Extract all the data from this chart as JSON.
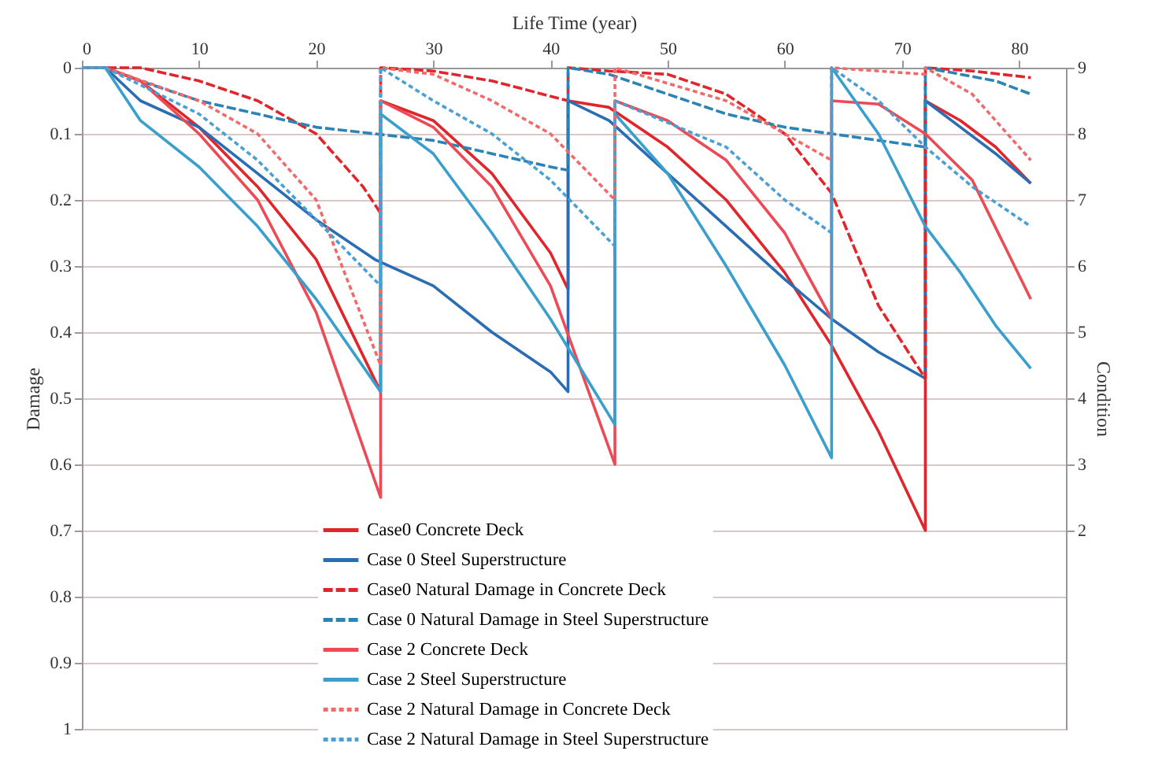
{
  "chart_data": {
    "type": "line",
    "xlabel": "Life Time (year)",
    "ylabel": "Damage",
    "y2label": "Condition",
    "xlim": [
      0,
      84
    ],
    "xticks": [
      0,
      10,
      20,
      30,
      40,
      50,
      60,
      70,
      80
    ],
    "ylim": [
      1,
      0
    ],
    "yticks": [
      0,
      0.1,
      0.2,
      0.3,
      0.4,
      0.5,
      0.6,
      0.7,
      0.8,
      0.9,
      1
    ],
    "y2lim": [
      -1,
      9
    ],
    "y2ticks": [
      2,
      3,
      4,
      5,
      6,
      7,
      8,
      9
    ],
    "grid": "y",
    "legend": "bottom",
    "series": [
      {
        "name": "Case0 Concrete Deck",
        "color": "#e0262b",
        "line_style": "solid",
        "x": [
          0,
          2,
          5,
          10,
          15,
          20,
          25.5,
          25.5,
          30,
          35,
          40,
          41.5,
          41.5,
          45,
          50,
          55,
          60,
          64,
          68,
          72,
          72,
          75,
          78,
          81
        ],
        "values": [
          0,
          0,
          0.02,
          0.09,
          0.18,
          0.29,
          0.49,
          0.05,
          0.08,
          0.16,
          0.28,
          0.335,
          0.05,
          0.06,
          0.12,
          0.2,
          0.31,
          0.42,
          0.55,
          0.7,
          0.05,
          0.08,
          0.12,
          0.175
        ]
      },
      {
        "name": "Case 0 Steel Superstructure",
        "color": "#2a6db2",
        "line_style": "solid",
        "x": [
          0,
          2,
          5,
          10,
          15,
          20,
          25,
          30,
          35,
          40,
          41.5,
          41.5,
          45,
          50,
          55,
          60,
          64,
          68,
          72,
          72,
          75,
          78,
          81
        ],
        "values": [
          0,
          0,
          0.05,
          0.09,
          0.16,
          0.23,
          0.29,
          0.33,
          0.4,
          0.46,
          0.49,
          0.05,
          0.08,
          0.16,
          0.24,
          0.32,
          0.38,
          0.43,
          0.47,
          0.05,
          0.09,
          0.13,
          0.175
        ]
      },
      {
        "name": "Case0 Natural Damage in Concrete Deck",
        "color": "#e0262b",
        "line_style": "dashed",
        "x": [
          0,
          5,
          10,
          15,
          20,
          24,
          25.5,
          25.5,
          30,
          35,
          41.5,
          41.5,
          45,
          50,
          55,
          60,
          64,
          68,
          72,
          72,
          76,
          81
        ],
        "values": [
          0,
          0,
          0.02,
          0.05,
          0.1,
          0.18,
          0.22,
          0,
          0.005,
          0.02,
          0.05,
          0,
          0.005,
          0.01,
          0.04,
          0.1,
          0.19,
          0.36,
          0.47,
          0,
          0.005,
          0.015
        ]
      },
      {
        "name": "Case 0 Natural Damage in Steel Superstructure",
        "color": "#2a84b5",
        "line_style": "dashed",
        "x": [
          0,
          2,
          5,
          10,
          15,
          20,
          25,
          30,
          35,
          40,
          41.5,
          41.5,
          45,
          50,
          55,
          60,
          64,
          68,
          72,
          72,
          75,
          78,
          81
        ],
        "values": [
          0,
          0,
          0.02,
          0.05,
          0.07,
          0.09,
          0.1,
          0.11,
          0.13,
          0.15,
          0.155,
          0,
          0.01,
          0.04,
          0.07,
          0.09,
          0.1,
          0.11,
          0.12,
          0,
          0.01,
          0.02,
          0.04
        ]
      },
      {
        "name": "Case 2 Concrete Deck",
        "color": "#ec4a55",
        "line_style": "solid",
        "x": [
          0,
          2,
          5,
          10,
          15,
          20,
          25.5,
          25.5,
          30,
          35,
          40,
          45.5,
          45.5,
          50,
          55,
          60,
          64,
          64,
          68,
          72,
          76,
          81
        ],
        "values": [
          0,
          0,
          0.02,
          0.1,
          0.2,
          0.37,
          0.65,
          0.05,
          0.09,
          0.18,
          0.33,
          0.6,
          0.05,
          0.08,
          0.14,
          0.25,
          0.38,
          0.05,
          0.055,
          0.1,
          0.17,
          0.35
        ]
      },
      {
        "name": "Case 2 Steel Superstructure",
        "color": "#3a9fcc",
        "line_style": "solid",
        "x": [
          0,
          2,
          5,
          10,
          15,
          20,
          25.5,
          25.5,
          30,
          35,
          40,
          45.5,
          45.5,
          50,
          55,
          60,
          64,
          64,
          66,
          68,
          70,
          72,
          75,
          78,
          81
        ],
        "values": [
          0,
          0,
          0.08,
          0.15,
          0.24,
          0.35,
          0.49,
          0.07,
          0.13,
          0.25,
          0.38,
          0.54,
          0.07,
          0.16,
          0.3,
          0.45,
          0.59,
          0,
          0.05,
          0.1,
          0.17,
          0.24,
          0.31,
          0.39,
          0.455
        ]
      },
      {
        "name": "Case 2 Natural Damage in Concrete Deck",
        "color": "#f06a6a",
        "line_style": "dotted",
        "x": [
          0,
          2,
          10,
          15,
          20,
          25.5,
          25.5,
          30,
          35,
          40,
          45.5,
          45.5,
          55,
          60,
          64,
          64,
          68,
          72,
          72,
          76,
          81
        ],
        "values": [
          0,
          0,
          0.05,
          0.1,
          0.2,
          0.45,
          0,
          0.01,
          0.05,
          0.1,
          0.2,
          0,
          0.05,
          0.1,
          0.14,
          0,
          0.005,
          0.01,
          0,
          0.04,
          0.14
        ]
      },
      {
        "name": "Case 2 Natural Damage in Steel Superstructure",
        "color": "#4a9fd4",
        "line_style": "dotted",
        "x": [
          0,
          2,
          10,
          15,
          20,
          25.5,
          25.5,
          30,
          35,
          40,
          45.5,
          45.5,
          55,
          60,
          64,
          64,
          68,
          72,
          76,
          81
        ],
        "values": [
          0,
          0,
          0.07,
          0.14,
          0.23,
          0.33,
          0,
          0.05,
          0.1,
          0.17,
          0.27,
          0.05,
          0.12,
          0.2,
          0.25,
          0,
          0.05,
          0.12,
          0.18,
          0.24
        ]
      }
    ]
  }
}
